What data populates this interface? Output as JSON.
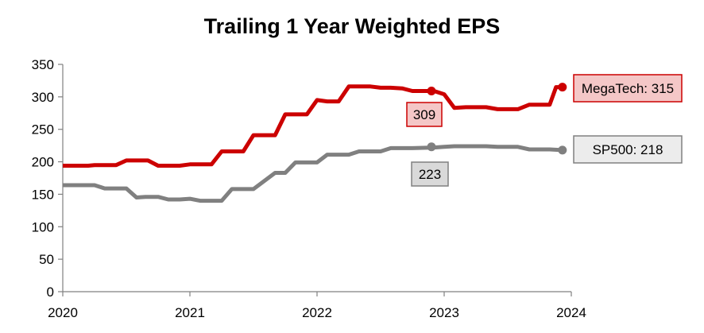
{
  "chart_data": {
    "type": "line",
    "title": "Trailing 1 Year Weighted EPS",
    "xlabel": "",
    "ylabel": "",
    "xlim": [
      2020,
      2024
    ],
    "ylim": [
      0,
      350
    ],
    "yticks": [
      0,
      50,
      100,
      150,
      200,
      250,
      300,
      350
    ],
    "xticks": [
      "2020",
      "2021",
      "2022",
      "2023",
      "2024"
    ],
    "x_ticks_values": [
      2020,
      2021,
      2022,
      2023,
      2024
    ],
    "grid": false,
    "series": [
      {
        "name": "MegaTech",
        "color": "#cc0000",
        "points": [
          [
            2020.0,
            194
          ],
          [
            2020.2,
            194
          ],
          [
            2020.25,
            195
          ],
          [
            2020.42,
            195
          ],
          [
            2020.5,
            202
          ],
          [
            2020.67,
            202
          ],
          [
            2020.75,
            194
          ],
          [
            2020.92,
            194
          ],
          [
            2021.0,
            196
          ],
          [
            2021.17,
            196
          ],
          [
            2021.25,
            216
          ],
          [
            2021.42,
            216
          ],
          [
            2021.5,
            241
          ],
          [
            2021.67,
            241
          ],
          [
            2021.75,
            273
          ],
          [
            2021.92,
            273
          ],
          [
            2022.0,
            295
          ],
          [
            2022.08,
            293
          ],
          [
            2022.17,
            293
          ],
          [
            2022.25,
            316
          ],
          [
            2022.42,
            316
          ],
          [
            2022.5,
            314
          ],
          [
            2022.58,
            314
          ],
          [
            2022.67,
            313
          ],
          [
            2022.75,
            309
          ],
          [
            2022.92,
            309
          ],
          [
            2023.0,
            304
          ],
          [
            2023.08,
            283
          ],
          [
            2023.17,
            284
          ],
          [
            2023.33,
            284
          ],
          [
            2023.42,
            281
          ],
          [
            2023.58,
            281
          ],
          [
            2023.67,
            288
          ],
          [
            2023.83,
            288
          ],
          [
            2023.88,
            315
          ],
          [
            2023.93,
            315
          ]
        ],
        "marker": [
          2022.9,
          309
        ],
        "end_marker": [
          2023.93,
          315
        ]
      },
      {
        "name": "SP500",
        "color": "#808080",
        "points": [
          [
            2020.0,
            164
          ],
          [
            2020.25,
            164
          ],
          [
            2020.33,
            159
          ],
          [
            2020.5,
            159
          ],
          [
            2020.58,
            145
          ],
          [
            2020.65,
            146
          ],
          [
            2020.75,
            146
          ],
          [
            2020.83,
            142
          ],
          [
            2020.92,
            142
          ],
          [
            2021.0,
            143
          ],
          [
            2021.08,
            140
          ],
          [
            2021.25,
            140
          ],
          [
            2021.33,
            158
          ],
          [
            2021.5,
            158
          ],
          [
            2021.67,
            183
          ],
          [
            2021.75,
            183
          ],
          [
            2021.83,
            199
          ],
          [
            2022.0,
            199
          ],
          [
            2022.08,
            211
          ],
          [
            2022.25,
            211
          ],
          [
            2022.33,
            216
          ],
          [
            2022.5,
            216
          ],
          [
            2022.58,
            221
          ],
          [
            2022.75,
            221
          ],
          [
            2022.92,
            222
          ],
          [
            2023.0,
            223
          ],
          [
            2023.08,
            224
          ],
          [
            2023.33,
            224
          ],
          [
            2023.42,
            223
          ],
          [
            2023.58,
            223
          ],
          [
            2023.67,
            219
          ],
          [
            2023.83,
            219
          ],
          [
            2023.93,
            218
          ]
        ],
        "marker": [
          2022.9,
          223
        ],
        "end_marker": [
          2023.93,
          218
        ]
      }
    ],
    "annotations": [
      {
        "text": "309",
        "series": "MegaTech",
        "fill": "#f4c7c7",
        "stroke": "#cc0000"
      },
      {
        "text": "223",
        "series": "SP500",
        "fill": "#d9d9d9",
        "stroke": "#808080"
      },
      {
        "text": "MegaTech: 315",
        "series": "MegaTech",
        "fill": "#f4c7c7",
        "stroke": "#cc0000"
      },
      {
        "text": "SP500: 218",
        "series": "SP500",
        "fill": "#ececec",
        "stroke": "#808080"
      }
    ]
  }
}
